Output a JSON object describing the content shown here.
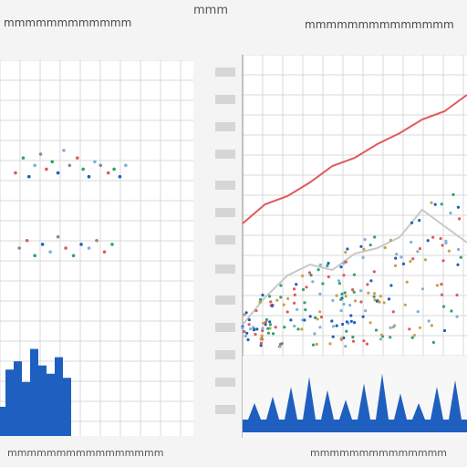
{
  "header": {
    "left_title": "mmmmmmmmmmmm",
    "top_center": "mmm",
    "right_title": "mmmmmmmmmmmmmm"
  },
  "footer": {
    "left": "mmmmmmmmmmmmmmmm",
    "right": "mmmmmmmmmmmmmm"
  },
  "colors": {
    "grid": "#d9d9d9",
    "red": "#e05a5a",
    "blue": "#1f5fbf",
    "green": "#2fa36b",
    "gray": "#c8c8c8"
  },
  "chart_data": [
    {
      "type": "scatter",
      "title": "",
      "series": [
        {
          "values": [
            [
              0.08,
              0.7
            ],
            [
              0.12,
              0.74
            ],
            [
              0.15,
              0.69
            ],
            [
              0.18,
              0.72
            ],
            [
              0.21,
              0.75
            ],
            [
              0.24,
              0.71
            ],
            [
              0.27,
              0.73
            ],
            [
              0.3,
              0.7
            ],
            [
              0.33,
              0.76
            ],
            [
              0.36,
              0.72
            ],
            [
              0.4,
              0.74
            ],
            [
              0.43,
              0.71
            ],
            [
              0.46,
              0.69
            ],
            [
              0.49,
              0.73
            ],
            [
              0.52,
              0.72
            ],
            [
              0.56,
              0.7
            ],
            [
              0.59,
              0.71
            ],
            [
              0.62,
              0.69
            ],
            [
              0.65,
              0.72
            ],
            [
              0.1,
              0.5
            ],
            [
              0.14,
              0.52
            ],
            [
              0.18,
              0.48
            ],
            [
              0.22,
              0.51
            ],
            [
              0.26,
              0.49
            ],
            [
              0.3,
              0.53
            ],
            [
              0.34,
              0.5
            ],
            [
              0.38,
              0.48
            ],
            [
              0.42,
              0.51
            ],
            [
              0.46,
              0.5
            ],
            [
              0.5,
              0.52
            ],
            [
              0.54,
              0.49
            ],
            [
              0.58,
              0.51
            ]
          ]
        }
      ],
      "bars": {
        "values": [
          0.18,
          0.22,
          0.12,
          0.28,
          0.2,
          0.16,
          0.24,
          0.14
        ]
      }
    },
    {
      "type": "line",
      "title": "",
      "series": [
        {
          "values": [
            0.45,
            0.52,
            0.55,
            0.6,
            0.66,
            0.69,
            0.74,
            0.78,
            0.83,
            0.86,
            0.92
          ]
        },
        {
          "values": [
            0.08,
            0.18,
            0.26,
            0.3,
            0.28,
            0.34,
            0.36,
            0.4,
            0.5,
            0.44,
            0.38
          ]
        }
      ],
      "scatter_density": 0.55,
      "bars": {
        "values": [
          0.1,
          0.14,
          0.2,
          0.26,
          0.18,
          0.12,
          0.22,
          0.28,
          0.16,
          0.1,
          0.2,
          0.24
        ]
      }
    }
  ]
}
